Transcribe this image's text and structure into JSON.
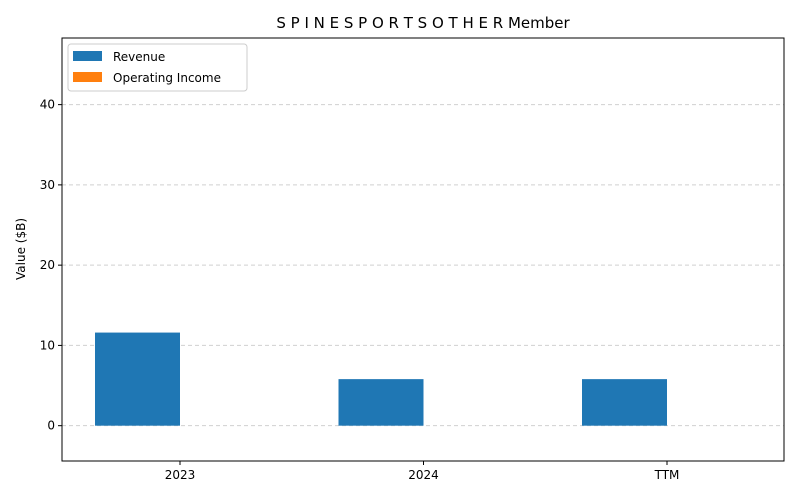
{
  "chart_data": {
    "type": "bar",
    "title": "S P I N E S P O R T S O T H E R Member",
    "xlabel": "",
    "ylabel": "Value ($B)",
    "categories": [
      "2023",
      "2024",
      "TTM"
    ],
    "series": [
      {
        "name": "Revenue",
        "values": [
          11.6,
          5.8,
          5.8
        ],
        "color": "#1f77b4"
      },
      {
        "name": "Operating Income",
        "values": [
          0,
          0,
          0
        ],
        "color": "#ff7f0e"
      }
    ],
    "ylim": [
      -4.4,
      48.3
    ],
    "yticks": [
      "0",
      "10",
      "20",
      "30",
      "40"
    ],
    "grid": "y-dashed",
    "legend_position": "top-left"
  }
}
